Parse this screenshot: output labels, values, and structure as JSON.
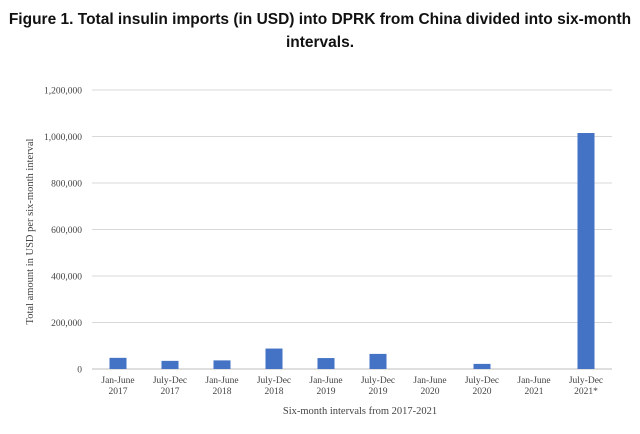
{
  "figure": {
    "title_line1": "Figure 1. Total insulin imports (in USD) into DPRK from China divided into six-month",
    "title_line2": "intervals."
  },
  "chart_data": {
    "type": "bar",
    "title": "Figure 1. Total insulin imports (in USD) into DPRK from China divided into six-month intervals.",
    "xlabel": "Six-month intervals from 2017-2021",
    "ylabel": "Total amount in USD per six-month interval",
    "categories": [
      [
        "Jan-June",
        "2017"
      ],
      [
        "July-Dec",
        "2017"
      ],
      [
        "Jan-June",
        "2018"
      ],
      [
        "July-Dec",
        "2018"
      ],
      [
        "Jan-June",
        "2019"
      ],
      [
        "July-Dec",
        "2019"
      ],
      [
        "Jan-June",
        "2020"
      ],
      [
        "July-Dec",
        "2020"
      ],
      [
        "Jan-June",
        "2021"
      ],
      [
        "July-Dec",
        "2021*"
      ]
    ],
    "values": [
      48000,
      35000,
      37000,
      88000,
      47000,
      65000,
      0,
      22000,
      0,
      1015000
    ],
    "ylim": [
      0,
      1200000
    ],
    "yticks": [
      0,
      200000,
      400000,
      600000,
      800000,
      1000000,
      1200000
    ],
    "ytick_labels": [
      "0",
      "200,000",
      "400,000",
      "600,000",
      "800,000",
      "1,000,000",
      "1,200,000"
    ],
    "grid": true,
    "bar_color": "#4472c4",
    "grid_color": "#d9d9d9"
  }
}
